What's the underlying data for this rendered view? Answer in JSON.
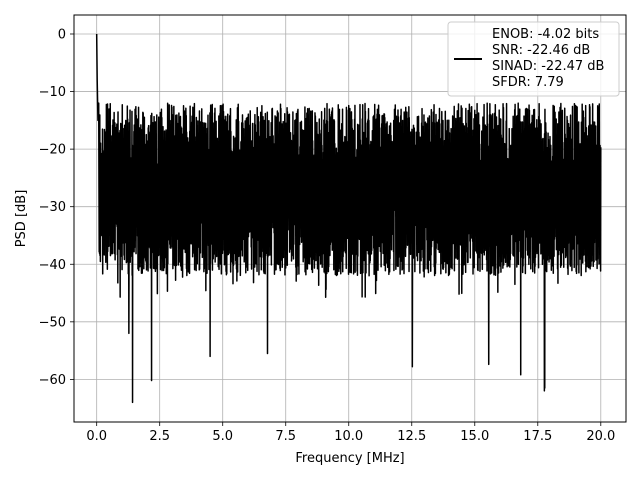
{
  "chart_data": {
    "type": "line",
    "title": "",
    "xlabel": "Frequency [MHz]",
    "ylabel": "PSD [dB]",
    "xlim": [
      -0.9,
      21.0
    ],
    "ylim": [
      -67.4,
      3.3
    ],
    "x_ticks": [
      0.0,
      2.5,
      5.0,
      7.5,
      10.0,
      12.5,
      15.0,
      17.5,
      20.0
    ],
    "x_tick_labels": [
      "0.0",
      "2.5",
      "5.0",
      "7.5",
      "10.0",
      "12.5",
      "15.0",
      "17.5",
      "20.0"
    ],
    "y_ticks": [
      0,
      -10,
      -20,
      -30,
      -40,
      -50,
      -60
    ],
    "y_tick_labels": [
      "0",
      "−10",
      "−20",
      "−30",
      "−40",
      "−50",
      "−60"
    ],
    "grid": true,
    "legend_position": "top-right",
    "series": [
      {
        "name": "ENOB: -4.02 bits\nSNR: -22.46 dB\nSINAD: -22.47 dB\nSFDR: 7.79",
        "color": "#000000",
        "noise_envelope": {
          "upper_db": [
            -12,
            -18
          ],
          "lower_db": [
            -38,
            -45
          ],
          "x_range": [
            0.0,
            20.0
          ]
        },
        "x": [
          0.0,
          0.02,
          0.05,
          0.08,
          0.1,
          1.42,
          1.28,
          2.18,
          4.5,
          6.78,
          12.52,
          15.55,
          16.82,
          17.76,
          17.78
        ],
        "y": [
          0.0,
          -8.0,
          -15.0,
          -12.0,
          -10.0,
          -64.0,
          -52.0,
          -60.2,
          -56.0,
          -55.5,
          -57.8,
          -57.4,
          -59.2,
          -62.0,
          -61.5
        ]
      }
    ]
  },
  "legend": {
    "lines": [
      "ENOB: -4.02 bits",
      "SNR: -22.46 dB",
      "SINAD: -22.47 dB",
      "SFDR: 7.79"
    ]
  },
  "axis": {
    "xlabel": "Frequency [MHz]",
    "ylabel": "PSD [dB]"
  }
}
